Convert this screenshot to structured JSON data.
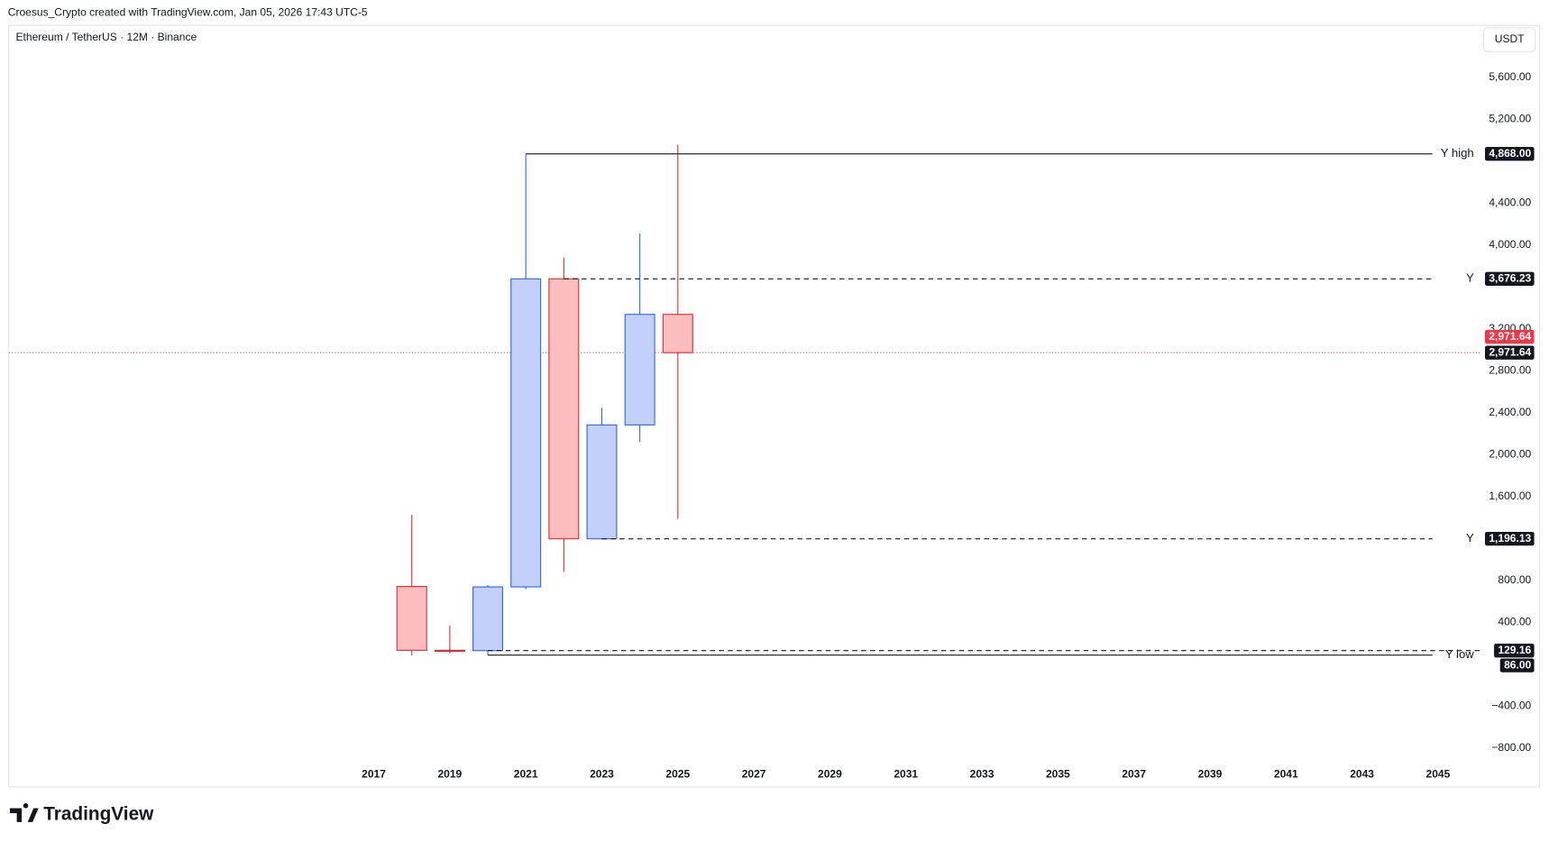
{
  "header": "Croesus_Crypto created with TradingView.com, Jan 05, 2026 17:43 UTC-5",
  "brand": "TradingView",
  "chart_data": {
    "type": "candlestick",
    "title": "Ethereum / TetherUS · 12M · Binance",
    "currency": "USDT",
    "x": [
      2018,
      2019,
      2020,
      2021,
      2022,
      2023,
      2024,
      2025
    ],
    "open": [
      741,
      132,
      129,
      737,
      3676,
      1196,
      2282,
      3337
    ],
    "high": [
      1424,
      367,
      755,
      4868,
      3877,
      2445,
      4107,
      4956
    ],
    "low": [
      82,
      102,
      86,
      716,
      880,
      1190,
      2120,
      1385
    ],
    "close": [
      132,
      129,
      737,
      3676,
      1196,
      2282,
      3337,
      2971.64
    ],
    "up_color": "#2962ff",
    "up_fill": "#c3d0fb",
    "down_color": "#e8272f",
    "down_fill": "#fbbdbd",
    "xlim": [
      2007.4,
      2046.1
    ],
    "xticks": [
      2017,
      2019,
      2021,
      2023,
      2025,
      2027,
      2029,
      2031,
      2033,
      2035,
      2037,
      2039,
      2041,
      2043,
      2045
    ],
    "ylim": [
      -969,
      6089
    ],
    "yticks": [
      {
        "value": 5600,
        "label": "5,600.00"
      },
      {
        "value": 5200,
        "label": "5,200.00"
      },
      {
        "value": 4400,
        "label": "4,400.00"
      },
      {
        "value": 4000,
        "label": "4,000.00"
      },
      {
        "value": 3200,
        "label": "3,200.00"
      },
      {
        "value": 2800,
        "label": "2,800.00"
      },
      {
        "value": 2400,
        "label": "2,400.00"
      },
      {
        "value": 2000,
        "label": "2,000.00"
      },
      {
        "value": 1600,
        "label": "1,600.00"
      },
      {
        "value": 800,
        "label": "800.00"
      },
      {
        "value": 400,
        "label": "400.00"
      },
      {
        "value": -400,
        "label": "−400.00"
      },
      {
        "value": -800,
        "label": "−800.00"
      }
    ],
    "levels": [
      {
        "label": "Y high",
        "value": 4868,
        "value_label": "4,868.00",
        "start": 2021,
        "style": "solid"
      },
      {
        "label": "Y",
        "value": 3676.23,
        "value_label": "3,676.23",
        "start": 2022,
        "style": "dashed"
      },
      {
        "label": "Y",
        "value": 1196.13,
        "value_label": "1,196.13",
        "start": 2023,
        "style": "dashed"
      },
      {
        "value": 129.16,
        "value_label": "129.16",
        "start": 2020,
        "style": "dashed"
      },
      {
        "label": "Y low",
        "value": 86,
        "value_label": "86.00",
        "start": 2020,
        "style": "solid"
      }
    ],
    "last_price": {
      "value": 2971.64,
      "value_label": "2,971.64",
      "color": "#f23645"
    }
  }
}
